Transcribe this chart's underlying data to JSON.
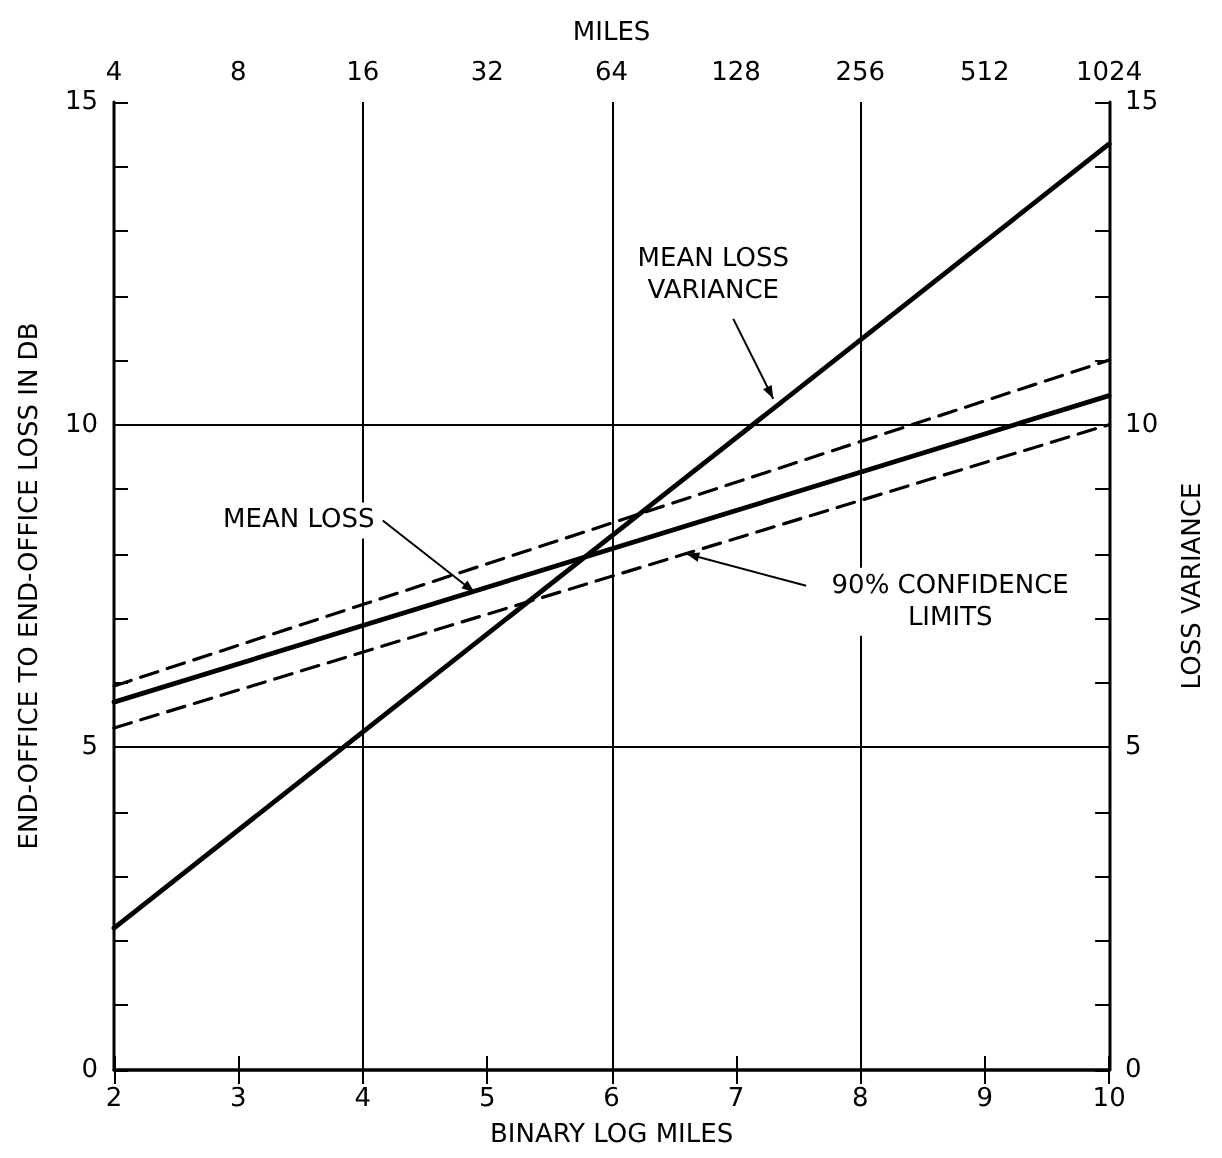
{
  "chart_data": {
    "type": "line",
    "xlabel": "BINARY LOG MILES",
    "ylabel": "END-OFFICE TO END-OFFICE LOSS IN DB",
    "y2label": "LOSS VARIANCE",
    "x2label": "MILES",
    "xlim": [
      2,
      10
    ],
    "xticks": [
      2,
      3,
      4,
      5,
      6,
      7,
      8,
      9,
      10
    ],
    "x2lim": [
      4,
      1024
    ],
    "x2ticks": [
      4,
      8,
      16,
      32,
      64,
      128,
      256,
      512,
      1024
    ],
    "ylim": [
      0,
      15
    ],
    "yticks": [
      0,
      {
        "value": 1,
        "label": null
      },
      {
        "value": 2,
        "label": null
      },
      {
        "value": 3,
        "label": null
      },
      {
        "value": 4,
        "label": null
      },
      5,
      {
        "value": 6,
        "label": null
      },
      {
        "value": 7,
        "label": null
      },
      {
        "value": 8,
        "label": null
      },
      {
        "value": 9,
        "label": null
      },
      10,
      {
        "value": 11,
        "label": null
      },
      {
        "value": 12,
        "label": null
      },
      {
        "value": 13,
        "label": null
      },
      {
        "value": 14,
        "label": null
      },
      15
    ],
    "y2lim": [
      0,
      15
    ],
    "y2ticks": [
      0,
      {
        "value": 1,
        "label": null
      },
      {
        "value": 2,
        "label": null
      },
      {
        "value": 3,
        "label": null
      },
      {
        "value": 4,
        "label": null
      },
      5,
      {
        "value": 6,
        "label": null
      },
      {
        "value": 7,
        "label": null
      },
      {
        "value": 8,
        "label": null
      },
      {
        "value": 9,
        "label": null
      },
      10,
      {
        "value": 11,
        "label": null
      },
      {
        "value": 12,
        "label": null
      },
      {
        "value": 13,
        "label": null
      },
      {
        "value": 14,
        "label": null
      },
      15
    ],
    "grid": true,
    "marker": "none",
    "log": "x2",
    "x": [
      2,
      10
    ],
    "series": [
      {
        "color": "#000000",
        "values": [
          5.7,
          10.45
        ],
        "line_style": "solid"
      },
      {
        "color": "#000000",
        "values": [
          5.95,
          11.0
        ],
        "line_style": "dashed"
      },
      {
        "color": "#000000",
        "values": [
          5.3,
          10.0
        ],
        "line_style": "dashed"
      },
      {
        "color": "#000000",
        "values": [
          2.2,
          14.35
        ],
        "line_style": "solid",
        "axis": "y2"
      }
    ],
    "annotations": [
      {
        "text": "MEAN LOSS VARIANCE",
        "x": 7.3,
        "y": 10.4
      },
      {
        "text": "MEAN LOSS",
        "x": 4.9,
        "y": 7.4
      },
      {
        "text": "90% CONFIDENCE LIMITS",
        "x": 6.6,
        "y": 8.0
      }
    ]
  }
}
